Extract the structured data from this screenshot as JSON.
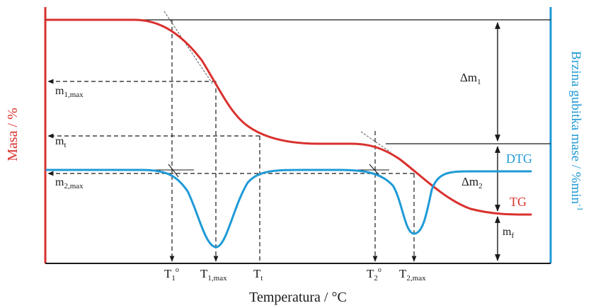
{
  "colors": {
    "tg": "#d9312d",
    "dtg": "#1f9ad6",
    "axis": "#1a1a1a",
    "dashed": "#1a1a1a"
  },
  "axes": {
    "left_title": "Masa / %",
    "right_title": "Brzina gubitka mase / %min",
    "right_title_exp": "-1",
    "bottom_title": "Temperatura / ",
    "bottom_title_unit": "°C"
  },
  "curve_labels": {
    "dtg": "DTG",
    "tg": "TG"
  },
  "mass_labels": {
    "m1max": {
      "base": "m",
      "sub": "1,max"
    },
    "mt": {
      "base": "m",
      "sub": "t"
    },
    "m2max": {
      "base": "m",
      "sub": "2,max"
    },
    "mf": {
      "base": "m",
      "sub": "f"
    }
  },
  "delta_labels": {
    "dm1": {
      "base": "Δm",
      "sub": "1"
    },
    "dm2": {
      "base": "Δm",
      "sub": "2"
    }
  },
  "temp_labels": {
    "t1o": {
      "base": "T",
      "sub": "1",
      "sup": "o"
    },
    "t1max": {
      "base": "T",
      "sub": "1,max"
    },
    "tt": {
      "base": "T",
      "sub": "t"
    },
    "t2o": {
      "base": "T",
      "sub": "2",
      "sup": "o"
    },
    "t2max": {
      "base": "T",
      "sub": "2,max"
    }
  }
}
